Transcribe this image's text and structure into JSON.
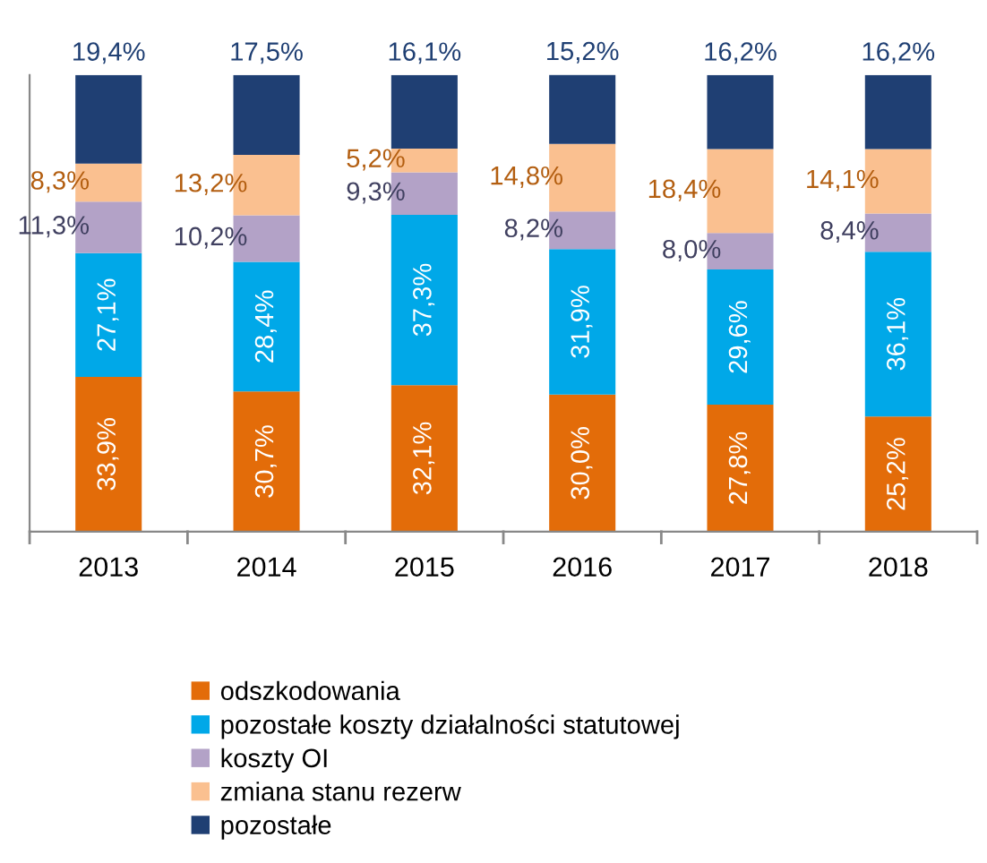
{
  "chart_data": {
    "type": "bar",
    "stacked": true,
    "categories": [
      "2013",
      "2014",
      "2015",
      "2016",
      "2017",
      "2018"
    ],
    "ylim": [
      0,
      100
    ],
    "legend": "bottom",
    "grid": false,
    "series": [
      {
        "name": "odszkodowania",
        "color": "#e36c09",
        "values": [
          33.9,
          30.7,
          32.1,
          30.0,
          27.8,
          25.2
        ],
        "value_labels": [
          "33,9%",
          "30,7%",
          "32,1%",
          "30,0%",
          "27,8%",
          "25,2%"
        ]
      },
      {
        "name": "pozostałe koszty działalności statutowej",
        "color": "#00a8e8",
        "values": [
          27.1,
          28.4,
          37.3,
          31.9,
          29.6,
          36.1
        ],
        "value_labels": [
          "27,1%",
          "28,4%",
          "37,3%",
          "31,9%",
          "29,6%",
          "36,1%"
        ]
      },
      {
        "name": "koszty OI",
        "color": "#b3a2c7",
        "values": [
          11.3,
          10.2,
          9.3,
          8.2,
          8.0,
          8.4
        ],
        "value_labels": [
          "11,3%",
          "10,2%",
          "9,3%",
          "8,2%",
          "8,0%",
          "8,4%"
        ]
      },
      {
        "name": "zmiana stanu rezerw",
        "color": "#fac090",
        "values": [
          8.3,
          13.2,
          5.2,
          14.8,
          18.4,
          14.1
        ],
        "value_labels": [
          "8,3%",
          "13,2%",
          "5,2%",
          "14,8%",
          "18,4%",
          "14,1%"
        ]
      },
      {
        "name": "pozostałe",
        "color": "#1f3f73",
        "values": [
          19.4,
          17.5,
          16.1,
          15.2,
          16.2,
          16.2
        ],
        "value_labels": [
          "19,4%",
          "17,5%",
          "16,1%",
          "15,2%",
          "16,2%",
          "16,2%"
        ]
      }
    ]
  }
}
